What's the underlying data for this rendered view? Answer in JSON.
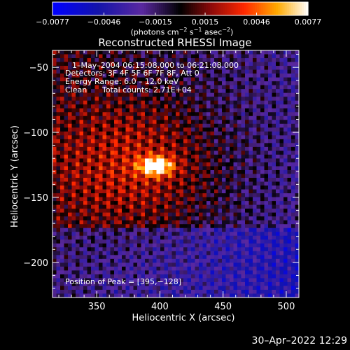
{
  "chart_data": {
    "type": "heatmap",
    "title": "Reconstructed RHESSI Image",
    "xlabel": "Heliocentric X (arcsec)",
    "ylabel": "Heliocentric Y (arcsec)",
    "xlim": [
      315,
      510
    ],
    "ylim": [
      -227,
      -37
    ],
    "x_ticks": [
      350,
      400,
      450,
      500
    ],
    "x_tick_labels": [
      "350",
      "400",
      "450",
      "500"
    ],
    "y_ticks": [
      -50,
      -100,
      -150,
      -200
    ],
    "y_tick_labels": [
      "−50",
      "−100",
      "−150",
      "−200"
    ],
    "colorbar": {
      "range": [
        -0.0077,
        0.0077
      ],
      "ticks": [
        -0.0077,
        -0.0046,
        -0.0015,
        0.0015,
        0.0046,
        0.0077
      ],
      "tick_labels": [
        "−0.0077",
        "−0.0046",
        "−0.0015",
        "0.0015",
        "0.0046",
        "0.0077"
      ],
      "unit_parts": {
        "pre": "(photons cm",
        "exp1": "−2",
        "mid": " s",
        "exp2": "−1",
        "mid2": " asec",
        "exp3": "−2",
        "post": ")"
      }
    },
    "peak": {
      "x": 395,
      "y": -128
    },
    "source_blob": {
      "x_center": 397,
      "y_center": -126,
      "peak_value": 0.0077
    }
  },
  "annotations": {
    "time_range": "1–May–2004 06:15:08.000 to 06:21:08.000",
    "detectors": "Detectors: 3F 4F 5F 6F 7F 8F, Att 0",
    "energy": "Energy Range: 6.0 – 12.0 keV",
    "clean_label": "Clean",
    "counts": "Total counts: 2.71E+04",
    "peak_text": "Position of Peak = [395,−128]"
  },
  "footer": {
    "timestamp": "30–Apr–2022 12:29"
  },
  "colors": {
    "background": "#000000",
    "axis": "#ffffff",
    "text": "#ffffff"
  }
}
